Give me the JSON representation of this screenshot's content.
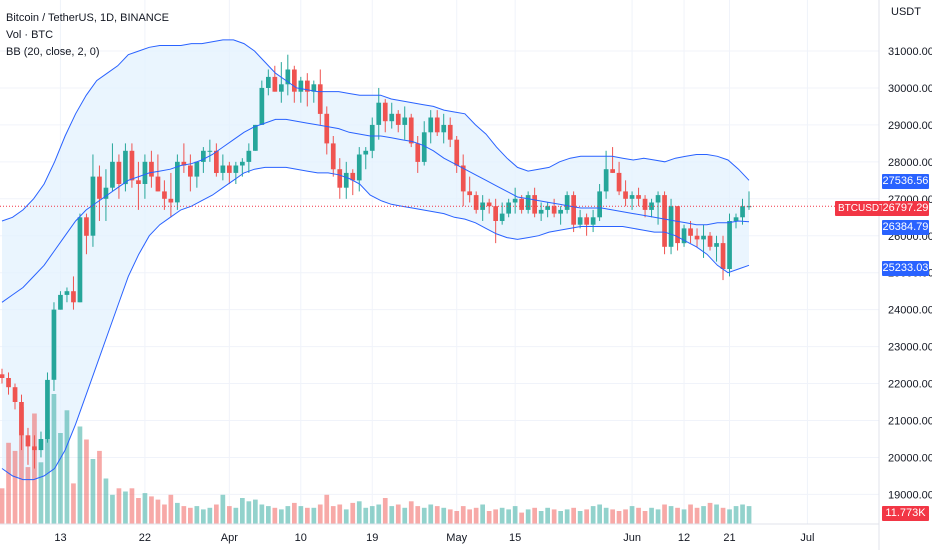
{
  "legend": {
    "symbol": "Bitcoin / TetherUS, 1D, BINANCE",
    "volume": "Vol · BTC",
    "bollinger": "BB (20, close, 2, 0)"
  },
  "axis": {
    "unit": "USDT",
    "price_ticks": [
      "31000.00",
      "30000.00",
      "29000.00",
      "28000.00",
      "27000.00",
      "26000.00",
      "25000.00",
      "24000.00",
      "23000.00",
      "22000.00",
      "21000.00",
      "20000.00",
      "19000.00"
    ],
    "date_ticks": [
      "13",
      "22",
      "Apr",
      "10",
      "19",
      "May",
      "15",
      "Jun",
      "12",
      "21",
      "Jul"
    ]
  },
  "tags": {
    "bb_upper": "27536.56",
    "price": "26797.29",
    "symbol": "BTCUSDT",
    "bb_basis": "26384.79",
    "bb_lower": "25233.03",
    "volume": "11.773K"
  },
  "colors": {
    "up": "#26a69a",
    "down": "#ef5350",
    "band_line": "#2962ff",
    "band_fill": "#e3f2fd",
    "price_line": "#f23645"
  },
  "chart_data": {
    "type": "candlestick",
    "interval": "1D",
    "ylim": [
      18600,
      31700
    ],
    "x_ticks": [
      "13",
      "22",
      "Apr",
      "10",
      "19",
      "May",
      "15",
      "Jun",
      "12",
      "21",
      "Jul"
    ],
    "last_price": 26797.29,
    "ohlc": [
      [
        22250,
        22400,
        22000,
        22150
      ],
      [
        22150,
        22300,
        21700,
        21900
      ],
      [
        21900,
        22000,
        21300,
        21500
      ],
      [
        21500,
        21700,
        20200,
        20600
      ],
      [
        20600,
        20800,
        19800,
        20300
      ],
      [
        20300,
        20600,
        19700,
        20200
      ],
      [
        20200,
        20700,
        20000,
        20500
      ],
      [
        20500,
        22300,
        20400,
        22100
      ],
      [
        22100,
        24200,
        21800,
        24000
      ],
      [
        24000,
        24500,
        24000,
        24400
      ],
      [
        24400,
        24600,
        24200,
        24500
      ],
      [
        24500,
        24900,
        24000,
        24200
      ],
      [
        24200,
        26600,
        24200,
        26500
      ],
      [
        26500,
        26600,
        25500,
        26000
      ],
      [
        26000,
        28200,
        25700,
        27600
      ],
      [
        27600,
        27900,
        26400,
        27000
      ],
      [
        27000,
        27800,
        26400,
        27300
      ],
      [
        27300,
        28500,
        27200,
        28000
      ],
      [
        28000,
        28200,
        27000,
        27400
      ],
      [
        27400,
        28500,
        27200,
        28300
      ],
      [
        28300,
        28500,
        27300,
        27500
      ],
      [
        27500,
        28000,
        26700,
        27400
      ],
      [
        27400,
        28200,
        27000,
        28000
      ],
      [
        28000,
        28300,
        27300,
        27600
      ],
      [
        27600,
        28200,
        27200,
        27200
      ],
      [
        27200,
        27500,
        26700,
        27000
      ],
      [
        27000,
        27700,
        26500,
        26900
      ],
      [
        26900,
        28200,
        26700,
        28000
      ],
      [
        28000,
        28500,
        27700,
        27900
      ],
      [
        27900,
        28200,
        27200,
        27600
      ],
      [
        27600,
        28000,
        27300,
        28000
      ],
      [
        28000,
        28400,
        27700,
        28300
      ],
      [
        28300,
        28600,
        28000,
        28300
      ],
      [
        28300,
        28500,
        27600,
        27700
      ],
      [
        27700,
        28200,
        27500,
        27900
      ],
      [
        27900,
        28000,
        27400,
        27700
      ],
      [
        27700,
        28000,
        27400,
        27900
      ],
      [
        27900,
        28100,
        27600,
        28000
      ],
      [
        28000,
        28500,
        27700,
        28300
      ],
      [
        28300,
        29000,
        28300,
        29000
      ],
      [
        29000,
        30200,
        29000,
        30000
      ],
      [
        30000,
        30500,
        29800,
        30300
      ],
      [
        30300,
        30600,
        29900,
        29900
      ],
      [
        29900,
        30700,
        29600,
        30100
      ],
      [
        30100,
        30900,
        29800,
        30500
      ],
      [
        30500,
        30600,
        29600,
        29900
      ],
      [
        29900,
        30300,
        29600,
        30200
      ],
      [
        30200,
        30400,
        29500,
        29900
      ],
      [
        29900,
        30200,
        29600,
        30100
      ],
      [
        30100,
        30500,
        29000,
        29300
      ],
      [
        29300,
        29500,
        28200,
        28500
      ],
      [
        28500,
        28700,
        27600,
        27800
      ],
      [
        27800,
        28100,
        27000,
        27300
      ],
      [
        27300,
        28000,
        27000,
        27700
      ],
      [
        27700,
        27800,
        27100,
        27500
      ],
      [
        27500,
        28400,
        27200,
        28200
      ],
      [
        28200,
        28400,
        27800,
        28300
      ],
      [
        28300,
        29200,
        28100,
        29000
      ],
      [
        29000,
        30000,
        28600,
        29600
      ],
      [
        29600,
        29700,
        28800,
        29100
      ],
      [
        29100,
        29600,
        28900,
        29300
      ],
      [
        29300,
        29400,
        28800,
        29000
      ],
      [
        29000,
        29500,
        28600,
        29200
      ],
      [
        29200,
        29300,
        28400,
        28500
      ],
      [
        28500,
        28700,
        27700,
        28000
      ],
      [
        28000,
        29100,
        27900,
        28800
      ],
      [
        28800,
        29400,
        28500,
        29200
      ],
      [
        29200,
        29400,
        28700,
        28800
      ],
      [
        28800,
        29300,
        28500,
        29000
      ],
      [
        29000,
        29200,
        28400,
        28600
      ],
      [
        28600,
        28700,
        27700,
        27900
      ],
      [
        27900,
        28200,
        26800,
        27200
      ],
      [
        27200,
        27600,
        26900,
        27100
      ],
      [
        27100,
        27200,
        26600,
        26700
      ],
      [
        26700,
        27100,
        26400,
        26900
      ],
      [
        26900,
        27000,
        26600,
        26800
      ],
      [
        26800,
        27000,
        25800,
        26400
      ],
      [
        26400,
        26900,
        26300,
        26600
      ],
      [
        26600,
        27000,
        26500,
        26900
      ],
      [
        26900,
        27300,
        26600,
        27000
      ],
      [
        27000,
        27100,
        26600,
        26700
      ],
      [
        26700,
        27200,
        26600,
        27100
      ],
      [
        27100,
        27300,
        26500,
        26600
      ],
      [
        26600,
        26900,
        26400,
        26700
      ],
      [
        26700,
        26900,
        26500,
        26800
      ],
      [
        26800,
        27000,
        26500,
        26600
      ],
      [
        26600,
        26800,
        26300,
        26700
      ],
      [
        26700,
        27200,
        26600,
        27100
      ],
      [
        27100,
        27200,
        26100,
        26300
      ],
      [
        26300,
        26700,
        26200,
        26500
      ],
      [
        26500,
        26600,
        26000,
        26300
      ],
      [
        26300,
        26700,
        26100,
        26500
      ],
      [
        26500,
        27400,
        26400,
        27200
      ],
      [
        27200,
        28300,
        27000,
        27800
      ],
      [
        27800,
        28400,
        27700,
        27700
      ],
      [
        27700,
        28000,
        27100,
        27200
      ],
      [
        27200,
        27500,
        26800,
        27000
      ],
      [
        27000,
        27200,
        26700,
        27100
      ],
      [
        27100,
        27300,
        26800,
        27000
      ],
      [
        27000,
        27100,
        26500,
        26700
      ],
      [
        26700,
        27000,
        26500,
        26900
      ],
      [
        26900,
        27200,
        26300,
        27100
      ],
      [
        27100,
        27200,
        25500,
        25700
      ],
      [
        25700,
        27000,
        25500,
        26800
      ],
      [
        26800,
        26800,
        25600,
        25800
      ],
      [
        25800,
        26300,
        25700,
        26200
      ],
      [
        26200,
        26400,
        25800,
        26000
      ],
      [
        26000,
        26200,
        25700,
        25900
      ],
      [
        25900,
        26300,
        25400,
        26000
      ],
      [
        26000,
        26100,
        25600,
        25700
      ],
      [
        25700,
        26000,
        25300,
        25800
      ],
      [
        25800,
        26000,
        24800,
        25100
      ],
      [
        25100,
        26600,
        24900,
        26400
      ],
      [
        26400,
        26600,
        26200,
        26500
      ],
      [
        26500,
        27000,
        26300,
        26800
      ],
      [
        26800,
        27200,
        26700,
        26800
      ]
    ],
    "volume": [
      22,
      50,
      45,
      72,
      35,
      68,
      38,
      58,
      80,
      56,
      70,
      25,
      60,
      52,
      40,
      45,
      28,
      18,
      22,
      20,
      22,
      16,
      19,
      17,
      15,
      12,
      18,
      13,
      11,
      10,
      11,
      9,
      10,
      12,
      18,
      11,
      10,
      16,
      14,
      15,
      12,
      11,
      10,
      9,
      11,
      13,
      11,
      10,
      10,
      12,
      18,
      11,
      12,
      9,
      13,
      14,
      10,
      11,
      12,
      16,
      11,
      12,
      10,
      14,
      11,
      10,
      12,
      11,
      10,
      9,
      8,
      11,
      9,
      10,
      12,
      8,
      9,
      10,
      9,
      11,
      7,
      9,
      10,
      8,
      10,
      9,
      8,
      9,
      10,
      8,
      9,
      11,
      12,
      10,
      9,
      8,
      9,
      11,
      10,
      8,
      10,
      9,
      12,
      11,
      10,
      9,
      12,
      10,
      11,
      13,
      12,
      10,
      9,
      11,
      12,
      11,
      9
    ],
    "bb_upper": [
      26400,
      26500,
      26700,
      27000,
      27400,
      28000,
      28700,
      29300,
      29800,
      30200,
      30400,
      30600,
      30900,
      31000,
      31100,
      31150,
      31150,
      31150,
      31200,
      31200,
      31250,
      31300,
      31300,
      31200,
      31000,
      30700,
      30400,
      30200,
      30000,
      29950,
      29900,
      29900,
      29900,
      29850,
      29800,
      29800,
      29800,
      29700,
      29650,
      29600,
      29550,
      29500,
      29400,
      29350,
      29300,
      29000,
      28750,
      28400,
      28100,
      27850,
      27750,
      27800,
      27850,
      28000,
      28100,
      28150,
      28150,
      28150,
      28150,
      28100,
      28050,
      28100,
      28050,
      28000,
      28100,
      28150,
      28200,
      28200,
      28150,
      28050,
      27800,
      27500
    ],
    "bb_basis": [
      24200,
      24400,
      24600,
      24900,
      25200,
      25600,
      26000,
      26400,
      26700,
      26900,
      27100,
      27300,
      27500,
      27600,
      27700,
      27750,
      27800,
      27900,
      27950,
      28050,
      28200,
      28400,
      28600,
      28800,
      28950,
      29050,
      29150,
      29150,
      29100,
      29050,
      29000,
      28950,
      28900,
      28800,
      28750,
      28700,
      28700,
      28650,
      28600,
      28550,
      28450,
      28300,
      28100,
      27950,
      27800,
      27650,
      27500,
      27350,
      27200,
      27050,
      27000,
      26950,
      26900,
      26850,
      26800,
      26750,
      26750,
      26750,
      26700,
      26650,
      26600,
      26550,
      26500,
      26450,
      26400,
      26350,
      26300,
      26300,
      26350,
      26350,
      26400,
      26380
    ],
    "bb_lower": [
      19700,
      19500,
      19400,
      19400,
      19500,
      19700,
      20200,
      20900,
      21700,
      22500,
      23300,
      24100,
      24900,
      25500,
      26000,
      26300,
      26500,
      26700,
      26800,
      26950,
      27100,
      27300,
      27500,
      27700,
      27800,
      27850,
      27850,
      27850,
      27800,
      27750,
      27700,
      27700,
      27650,
      27550,
      27400,
      27100,
      26950,
      26850,
      26800,
      26750,
      26700,
      26650,
      26600,
      26500,
      26450,
      26350,
      26200,
      26050,
      25950,
      25900,
      25950,
      26000,
      26100,
      26150,
      26200,
      26250,
      26250,
      26250,
      26250,
      26250,
      26200,
      26150,
      26100,
      26100,
      26000,
      25850,
      25700,
      25500,
      25200,
      25000,
      25100,
      25200
    ]
  }
}
